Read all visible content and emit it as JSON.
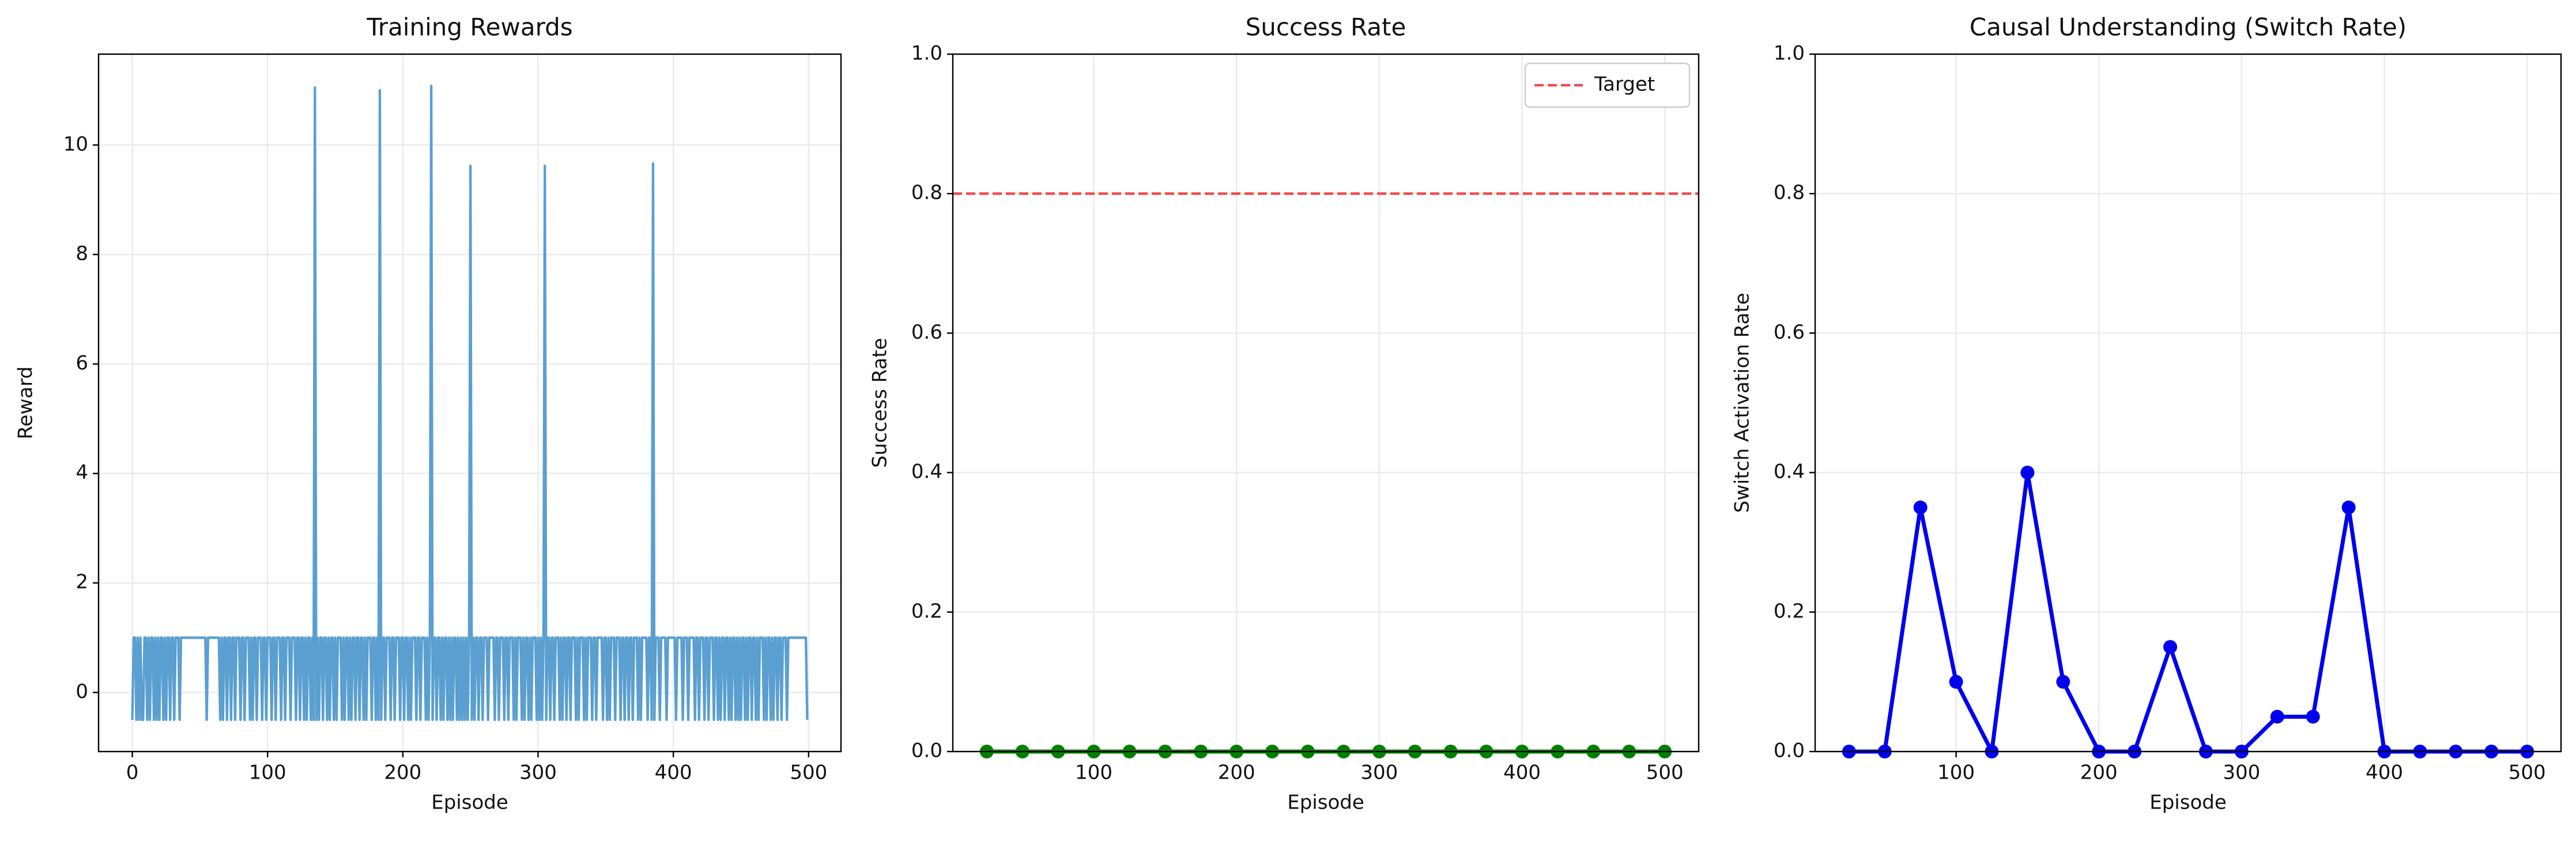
{
  "chart_data": [
    {
      "type": "line",
      "title": "Training Rewards",
      "xlabel": "Episode",
      "ylabel": "Reward",
      "x": [
        0,
        1,
        2,
        3,
        4,
        5,
        6,
        7,
        8,
        9,
        10,
        11,
        12,
        13,
        14,
        15,
        16,
        17,
        18,
        19,
        20,
        21,
        22,
        23,
        24,
        25,
        26,
        27,
        28,
        29,
        30,
        31,
        32,
        33,
        34,
        35,
        36,
        37,
        38,
        39,
        40,
        41,
        42,
        43,
        44,
        45,
        46,
        47,
        48,
        49,
        50,
        51,
        52,
        53,
        54,
        55,
        56,
        57,
        58,
        59,
        60,
        61,
        62,
        63,
        64,
        65,
        66,
        67,
        68,
        69,
        70,
        71,
        72,
        73,
        74,
        75,
        76,
        77,
        78,
        79,
        80,
        81,
        82,
        83,
        84,
        85,
        86,
        87,
        88,
        89,
        90,
        91,
        92,
        93,
        94,
        95,
        96,
        97,
        98,
        99,
        100,
        101,
        102,
        103,
        104,
        105,
        106,
        107,
        108,
        109,
        110,
        111,
        112,
        113,
        114,
        115,
        116,
        117,
        118,
        119,
        120,
        121,
        122,
        123,
        124,
        125,
        126,
        127,
        128,
        129,
        130,
        131,
        132,
        133,
        134,
        135,
        136,
        137,
        138,
        139,
        140,
        141,
        142,
        143,
        144,
        145,
        146,
        147,
        148,
        149,
        150,
        151,
        152,
        153,
        154,
        155,
        156,
        157,
        158,
        159,
        160,
        161,
        162,
        163,
        164,
        165,
        166,
        167,
        168,
        169,
        170,
        171,
        172,
        173,
        174,
        175,
        176,
        177,
        178,
        179,
        180,
        181,
        182,
        183,
        184,
        185,
        186,
        187,
        188,
        189,
        190,
        191,
        192,
        193,
        194,
        195,
        196,
        197,
        198,
        199,
        200,
        201,
        202,
        203,
        204,
        205,
        206,
        207,
        208,
        209,
        210,
        211,
        212,
        213,
        214,
        215,
        216,
        217,
        218,
        219,
        220,
        221,
        222,
        223,
        224,
        225,
        226,
        227,
        228,
        229,
        230,
        231,
        232,
        233,
        234,
        235,
        236,
        237,
        238,
        239,
        240,
        241,
        242,
        243,
        244,
        245,
        246,
        247,
        248,
        249,
        250,
        251,
        252,
        253,
        254,
        255,
        256,
        257,
        258,
        259,
        260,
        261,
        262,
        263,
        264,
        265,
        266,
        267,
        268,
        269,
        270,
        271,
        272,
        273,
        274,
        275,
        276,
        277,
        278,
        279,
        280,
        281,
        282,
        283,
        284,
        285,
        286,
        287,
        288,
        289,
        290,
        291,
        292,
        293,
        294,
        295,
        296,
        297,
        298,
        299,
        300,
        301,
        302,
        303,
        304,
        305,
        306,
        307,
        308,
        309,
        310,
        311,
        312,
        313,
        314,
        315,
        316,
        317,
        318,
        319,
        320,
        321,
        322,
        323,
        324,
        325,
        326,
        327,
        328,
        329,
        330,
        331,
        332,
        333,
        334,
        335,
        336,
        337,
        338,
        339,
        340,
        341,
        342,
        343,
        344,
        345,
        346,
        347,
        348,
        349,
        350,
        351,
        352,
        353,
        354,
        355,
        356,
        357,
        358,
        359,
        360,
        361,
        362,
        363,
        364,
        365,
        366,
        367,
        368,
        369,
        370,
        371,
        372,
        373,
        374,
        375,
        376,
        377,
        378,
        379,
        380,
        381,
        382,
        383,
        384,
        385,
        386,
        387,
        388,
        389,
        390,
        391,
        392,
        393,
        394,
        395,
        396,
        397,
        398,
        399,
        400,
        401,
        402,
        403,
        404,
        405,
        406,
        407,
        408,
        409,
        410,
        411,
        412,
        413,
        414,
        415,
        416,
        417,
        418,
        419,
        420,
        421,
        422,
        423,
        424,
        425,
        426,
        427,
        428,
        429,
        430,
        431,
        432,
        433,
        434,
        435,
        436,
        437,
        438,
        439,
        440,
        441,
        442,
        443,
        444,
        445,
        446,
        447,
        448,
        449,
        450,
        451,
        452,
        453,
        454,
        455,
        456,
        457,
        458,
        459,
        460,
        461,
        462,
        463,
        464,
        465,
        466,
        467,
        468,
        469,
        470,
        471,
        472,
        473,
        474,
        475,
        476,
        477,
        478,
        479,
        480,
        481,
        482,
        483,
        484,
        485,
        486,
        487,
        488,
        489,
        490,
        491,
        492,
        493,
        494,
        495,
        496,
        497,
        498,
        499
      ],
      "series": [
        {
          "color": "#5a9fd0",
          "marker": false,
          "values": [
            -0.5,
            1,
            1,
            -0.5,
            1,
            -0.5,
            1,
            -0.5,
            -0.5,
            1,
            1,
            -0.5,
            1,
            -0.5,
            1,
            1,
            -0.5,
            1,
            -0.5,
            1,
            -0.5,
            1,
            1,
            -0.5,
            1,
            -0.5,
            1,
            1,
            -0.5,
            1,
            1,
            -0.5,
            1,
            1,
            1,
            -0.5,
            1,
            1,
            1,
            1,
            1,
            1,
            1,
            1,
            1,
            1,
            1,
            1,
            1,
            1,
            1,
            1,
            1,
            1,
            1,
            -0.5,
            1,
            1,
            1,
            1,
            1,
            1,
            1,
            1,
            1,
            -0.5,
            1,
            -0.5,
            1,
            1,
            -0.5,
            1,
            1,
            -0.5,
            1,
            1,
            -0.5,
            1,
            1,
            1,
            -0.5,
            1,
            1,
            -0.5,
            1,
            1,
            1,
            -0.5,
            1,
            -0.5,
            1,
            1,
            -0.5,
            1,
            1,
            1,
            -0.5,
            1,
            1,
            -0.5,
            1,
            1,
            1,
            -0.5,
            1,
            1,
            -0.5,
            1,
            1,
            1,
            -0.5,
            1,
            1,
            -0.5,
            1,
            1,
            1,
            -0.5,
            1,
            1,
            1,
            -0.5,
            1,
            1,
            -0.5,
            1,
            1,
            -0.5,
            1,
            -0.5,
            1,
            1,
            -0.5,
            1,
            -0.5,
            11.05,
            -0.5,
            1,
            -0.5,
            1,
            1,
            -0.5,
            1,
            1,
            -0.5,
            1,
            -0.5,
            1,
            1,
            -0.5,
            1,
            -0.5,
            1,
            1,
            1,
            -0.5,
            1,
            -0.5,
            1,
            1,
            -0.5,
            1,
            -0.5,
            1,
            1,
            -0.5,
            1,
            1,
            -0.5,
            1,
            1,
            -0.5,
            1,
            -0.5,
            1,
            1,
            1,
            -0.5,
            1,
            1,
            -0.5,
            1,
            -0.5,
            11.0,
            -0.5,
            1,
            1,
            -0.5,
            1,
            1,
            1,
            -0.5,
            1,
            1,
            -0.5,
            1,
            1,
            1,
            -0.5,
            1,
            1,
            -0.5,
            1,
            1,
            -0.5,
            1,
            -0.5,
            1,
            1,
            1,
            -0.5,
            1,
            1,
            -0.5,
            1,
            1,
            1,
            -0.5,
            1,
            -0.5,
            1,
            11.08,
            -0.5,
            1,
            1,
            -0.5,
            1,
            1,
            -0.5,
            1,
            -0.5,
            1,
            1,
            -0.5,
            1,
            -0.5,
            1,
            -0.5,
            1,
            1,
            -0.5,
            1,
            -0.5,
            1,
            -0.5,
            1,
            -0.5,
            1,
            -0.5,
            1,
            9.62,
            -0.5,
            1,
            -0.5,
            1,
            1,
            -0.5,
            1,
            1,
            -0.5,
            1,
            1,
            1,
            -0.5,
            1,
            1,
            1,
            1,
            -0.5,
            1,
            1,
            -0.5,
            1,
            1,
            1,
            -0.5,
            1,
            1,
            -0.5,
            1,
            1,
            1,
            -0.5,
            1,
            -0.5,
            1,
            1,
            1,
            -0.5,
            1,
            -0.5,
            1,
            1,
            -0.5,
            1,
            -0.5,
            1,
            1,
            1,
            -0.5,
            1,
            -0.5,
            1,
            -0.5,
            1,
            9.62,
            -0.5,
            1,
            1,
            -0.5,
            1,
            1,
            -0.5,
            1,
            1,
            1,
            -0.5,
            1,
            -0.5,
            1,
            1,
            -0.5,
            1,
            1,
            -0.5,
            1,
            1,
            1,
            -0.5,
            1,
            -0.5,
            1,
            1,
            1,
            -0.5,
            1,
            -0.5,
            1,
            1,
            1,
            -0.5,
            1,
            1,
            -0.5,
            1,
            1,
            1,
            1,
            -0.5,
            1,
            1,
            -0.5,
            1,
            -0.5,
            1,
            1,
            1,
            -0.5,
            1,
            1,
            1,
            -0.5,
            1,
            1,
            -0.5,
            1,
            1,
            -0.5,
            1,
            1,
            -0.5,
            1,
            1,
            1,
            -0.5,
            1,
            -0.5,
            1,
            1,
            1,
            1,
            -0.5,
            1,
            1,
            -0.5,
            9.66,
            -0.5,
            1,
            1,
            1,
            -0.5,
            1,
            1,
            1,
            1,
            -0.5,
            1,
            1,
            1,
            1,
            1,
            1,
            -0.5,
            1,
            1,
            1,
            1,
            -0.5,
            1,
            1,
            1,
            -0.5,
            1,
            1,
            1,
            1,
            -0.5,
            1,
            1,
            -0.5,
            1,
            1,
            1,
            -0.5,
            1,
            1,
            -0.5,
            1,
            1,
            1,
            -0.5,
            1,
            1,
            -0.5,
            1,
            -0.5,
            1,
            1,
            -0.5,
            1,
            1,
            -0.5,
            1,
            -0.5,
            1,
            1,
            -0.5,
            1,
            -0.5,
            1,
            -0.5,
            1,
            1,
            -0.5,
            1,
            -0.5,
            1,
            1,
            -0.5,
            1,
            1,
            -0.5,
            1,
            -0.5,
            1,
            1,
            1,
            -0.5,
            1,
            -0.5,
            1,
            1,
            -0.5,
            1,
            -0.5,
            1,
            1,
            -0.5,
            1,
            1,
            -0.5,
            1,
            1,
            1,
            -0.5,
            1,
            1,
            1,
            1,
            1,
            1,
            1,
            1,
            1,
            1,
            1,
            1,
            1,
            1,
            -0.5
          ]
        }
      ],
      "xlim": [
        -24.95,
        523.95
      ],
      "ylim": [
        -1.08,
        11.66
      ],
      "xticks": [
        0,
        100,
        200,
        300,
        400,
        500
      ],
      "yticks": [
        0,
        2,
        4,
        6,
        8,
        10
      ],
      "grid": true
    },
    {
      "type": "line",
      "title": "Success Rate",
      "xlabel": "Episode",
      "ylabel": "Success Rate",
      "x": [
        25,
        50,
        75,
        100,
        125,
        150,
        175,
        200,
        225,
        250,
        275,
        300,
        325,
        350,
        375,
        400,
        425,
        450,
        475,
        500
      ],
      "series": [
        {
          "color": "#008000",
          "marker": true,
          "values": [
            0,
            0,
            0,
            0,
            0,
            0,
            0,
            0,
            0,
            0,
            0,
            0,
            0,
            0,
            0,
            0,
            0,
            0,
            0,
            0
          ]
        }
      ],
      "hlines": [
        {
          "name": "Target",
          "value": 0.8,
          "color": "#f04a4a",
          "style": "dashed"
        }
      ],
      "legend": "upper right",
      "xlim": [
        1.25,
        523.75
      ],
      "ylim": [
        0,
        1
      ],
      "xticks": [
        100,
        200,
        300,
        400,
        500
      ],
      "yticks": [
        {
          "value": 0,
          "label": "0.0"
        },
        {
          "value": 0.2,
          "label": "0.2"
        },
        {
          "value": 0.4,
          "label": "0.4"
        },
        {
          "value": 0.6,
          "label": "0.6"
        },
        {
          "value": 0.8,
          "label": "0.8"
        },
        {
          "value": 1,
          "label": "1.0"
        }
      ],
      "grid": true
    },
    {
      "type": "line",
      "title": "Causal Understanding (Switch Rate)",
      "xlabel": "Episode",
      "ylabel": "Switch Activation Rate",
      "x": [
        25,
        50,
        75,
        100,
        125,
        150,
        175,
        200,
        225,
        250,
        275,
        300,
        325,
        350,
        375,
        400,
        425,
        450,
        475,
        500
      ],
      "series": [
        {
          "color": "#0000ee",
          "marker": true,
          "values": [
            0,
            0,
            0.35,
            0.1,
            0,
            0.4,
            0.1,
            0,
            0,
            0.15,
            0,
            0,
            0.05,
            0.05,
            0.35,
            0,
            0,
            0,
            0,
            0
          ]
        }
      ],
      "xlim": [
        1.25,
        523.75
      ],
      "ylim": [
        0,
        1
      ],
      "xticks": [
        100,
        200,
        300,
        400,
        500
      ],
      "yticks": [
        {
          "value": 0,
          "label": "0.0"
        },
        {
          "value": 0.2,
          "label": "0.2"
        },
        {
          "value": 0.4,
          "label": "0.4"
        },
        {
          "value": 0.6,
          "label": "0.6"
        },
        {
          "value": 0.8,
          "label": "0.8"
        },
        {
          "value": 1,
          "label": "1.0"
        }
      ],
      "grid": true
    }
  ]
}
